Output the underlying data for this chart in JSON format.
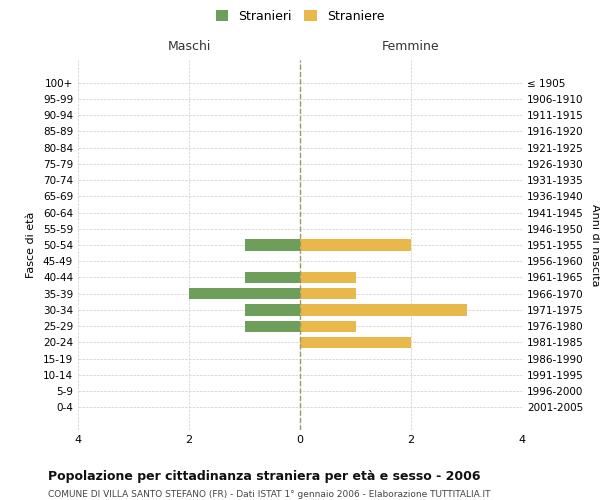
{
  "age_groups": [
    "0-4",
    "5-9",
    "10-14",
    "15-19",
    "20-24",
    "25-29",
    "30-34",
    "35-39",
    "40-44",
    "45-49",
    "50-54",
    "55-59",
    "60-64",
    "65-69",
    "70-74",
    "75-79",
    "80-84",
    "85-89",
    "90-94",
    "95-99",
    "100+"
  ],
  "birth_years": [
    "2001-2005",
    "1996-2000",
    "1991-1995",
    "1986-1990",
    "1981-1985",
    "1976-1980",
    "1971-1975",
    "1966-1970",
    "1961-1965",
    "1956-1960",
    "1951-1955",
    "1946-1950",
    "1941-1945",
    "1936-1940",
    "1931-1935",
    "1926-1930",
    "1921-1925",
    "1916-1920",
    "1911-1915",
    "1906-1910",
    "≤ 1905"
  ],
  "maschi": [
    0,
    0,
    0,
    0,
    0,
    1,
    1,
    2,
    1,
    0,
    1,
    0,
    0,
    0,
    0,
    0,
    0,
    0,
    0,
    0,
    0
  ],
  "femmine": [
    0,
    0,
    0,
    0,
    2,
    1,
    3,
    1,
    1,
    0,
    2,
    0,
    0,
    0,
    0,
    0,
    0,
    0,
    0,
    0,
    0
  ],
  "maschi_color": "#6d9e5a",
  "femmine_color": "#e8b84b",
  "xlim": 4,
  "title": "Popolazione per cittadinanza straniera per età e sesso - 2006",
  "subtitle": "COMUNE DI VILLA SANTO STEFANO (FR) - Dati ISTAT 1° gennaio 2006 - Elaborazione TUTTITALIA.IT",
  "ylabel_left": "Fasce di età",
  "ylabel_right": "Anni di nascita",
  "legend_maschi": "Stranieri",
  "legend_femmine": "Straniere",
  "maschi_header": "Maschi",
  "femmine_header": "Femmine",
  "bg_color": "#ffffff",
  "grid_color": "#cccccc",
  "bar_height": 0.7,
  "xticks": [
    -4,
    -2,
    0,
    2,
    4
  ],
  "xticklabels": [
    "4",
    "2",
    "0",
    "2",
    "4"
  ]
}
